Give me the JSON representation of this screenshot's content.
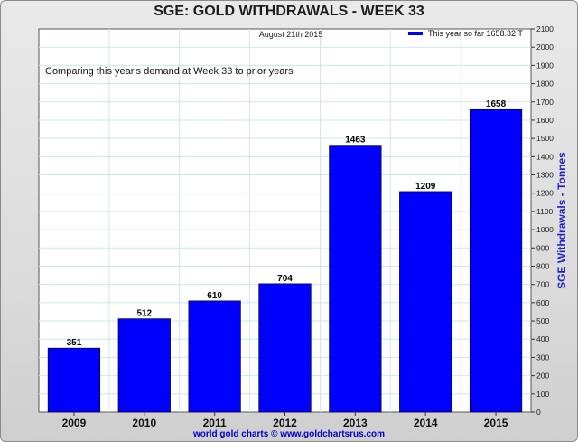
{
  "page": {
    "title": "SGE: GOLD WITHDRAWALS - WEEK 33",
    "date_label": "August 21th 2015",
    "annotation": "Comparing this year's demand at Week 33 to prior years",
    "footer": "world gold charts © www.goldchartsrus.com"
  },
  "colors": {
    "bar": "#0000ff",
    "grid": "#cfe6e6",
    "frame_background": "#e0e0e0",
    "plot_background": "#ffffff"
  },
  "chart_data": {
    "type": "bar",
    "title": "SGE: GOLD WITHDRAWALS - WEEK 33",
    "ylabel": "SGE Withdrawals - Tonnes",
    "xlabel": "",
    "categories": [
      "2009",
      "2010",
      "2011",
      "2012",
      "2013",
      "2014",
      "2015"
    ],
    "values": [
      351,
      512,
      610,
      704,
      1463,
      1209,
      1658
    ],
    "data_labels": [
      "351",
      "512",
      "610",
      "704",
      "1463",
      "1209",
      "1658"
    ],
    "series": [
      {
        "name": "This year so far 1658.32 T",
        "values": [
          351,
          512,
          610,
          704,
          1463,
          1209,
          1658
        ]
      }
    ],
    "ylim": [
      0,
      2100
    ],
    "ytick_step": 100,
    "y_axis_side": "right",
    "grid": true,
    "legend_position": "top-right"
  }
}
